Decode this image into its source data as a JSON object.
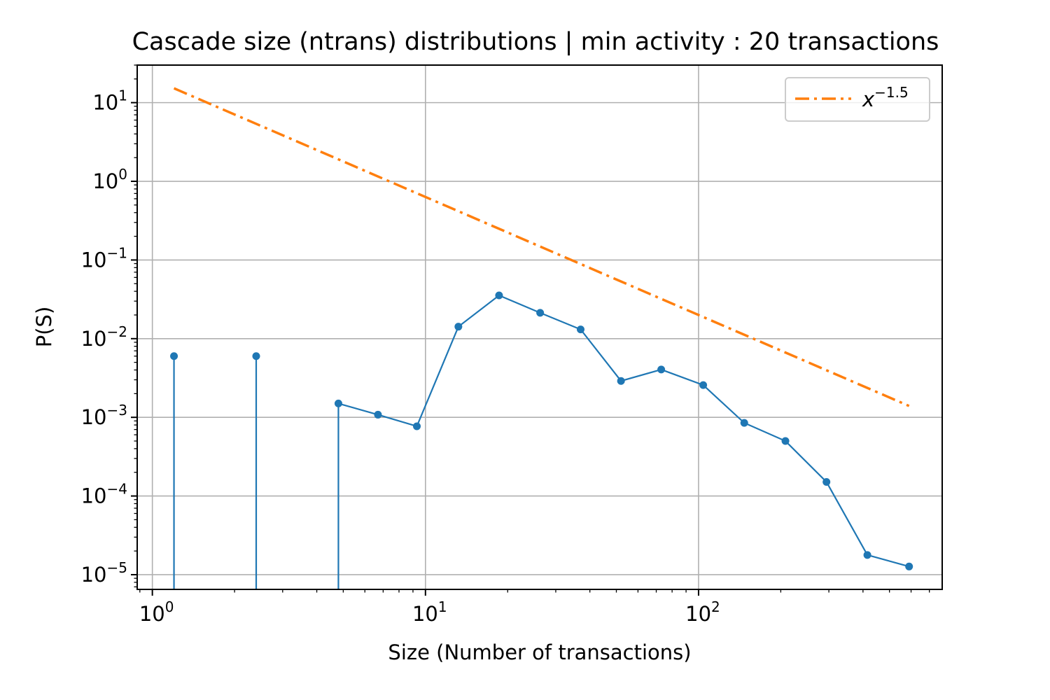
{
  "chart_data": {
    "type": "line",
    "title": "Cascade size (ntrans) distributions | min activity : 20 transactions",
    "xlabel": "Size (Number of transactions)",
    "ylabel": "P(S)",
    "xscale": "log",
    "yscale": "log",
    "xlim": [
      0.88,
      780
    ],
    "ylim": [
      6.5e-06,
      30
    ],
    "grid": true,
    "legend_placement": "top-right",
    "x_ticks": [
      {
        "value": 1,
        "base": "10",
        "exp": "0"
      },
      {
        "value": 10,
        "base": "10",
        "exp": "1"
      },
      {
        "value": 100,
        "base": "10",
        "exp": "2"
      }
    ],
    "y_ticks": [
      {
        "value": 10,
        "base": "10",
        "exp": "1"
      },
      {
        "value": 1,
        "base": "10",
        "exp": "0"
      },
      {
        "value": 0.1,
        "base": "10",
        "exp": "−1"
      },
      {
        "value": 0.01,
        "base": "10",
        "exp": "−2"
      },
      {
        "value": 0.001,
        "base": "10",
        "exp": "−3"
      },
      {
        "value": 0.0001,
        "base": "10",
        "exp": "−4"
      },
      {
        "value": 1e-05,
        "base": "10",
        "exp": "−5"
      }
    ],
    "series": [
      {
        "color": "#1f77b4",
        "style": "solid-with-markers",
        "x": [
          1.2,
          2.4,
          4.8,
          6.7,
          9.3,
          13.2,
          18.6,
          26.3,
          37,
          52,
          73,
          104,
          147,
          208,
          294,
          415,
          590
        ],
        "y": [
          0.006,
          0.006,
          0.0015,
          0.00108,
          0.00077,
          0.0142,
          0.0355,
          0.0213,
          0.0131,
          0.0029,
          0.00405,
          0.00257,
          0.00085,
          0.0005,
          0.000151,
          1.78e-05,
          1.27e-05
        ],
        "stems_to_bottom": [
          0,
          1,
          2
        ]
      },
      {
        "name_base": "x",
        "name_exp": "−1.5",
        "color": "#ff7f0e",
        "style": "dash-dot",
        "x": [
          1.2,
          590
        ],
        "y": [
          15.21,
          0.001395
        ]
      }
    ]
  }
}
